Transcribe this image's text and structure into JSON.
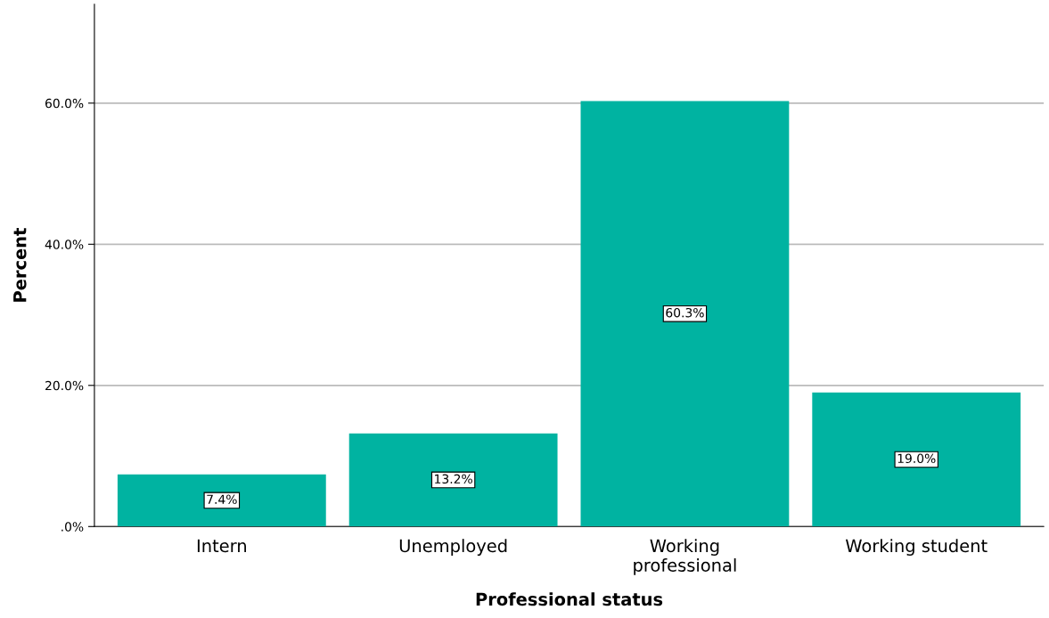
{
  "chart_data": {
    "type": "bar",
    "xlabel": "Professional status",
    "ylabel": "Percent",
    "categories": [
      "Intern",
      "Unemployed",
      "Working\nprofessional",
      "Working student"
    ],
    "values": [
      7.4,
      13.2,
      60.3,
      19.0
    ],
    "value_labels": [
      "7.4%",
      "13.2%",
      "60.3%",
      "19.0%"
    ],
    "color": "#00b3a1",
    "ylim": [
      0,
      74
    ],
    "yticks": [
      {
        "value": 0,
        "label": ".0%"
      },
      {
        "value": 20,
        "label": "20.0%"
      },
      {
        "value": 40,
        "label": "40.0%"
      },
      {
        "value": 60,
        "label": "60.0%"
      }
    ],
    "grid": "y"
  }
}
